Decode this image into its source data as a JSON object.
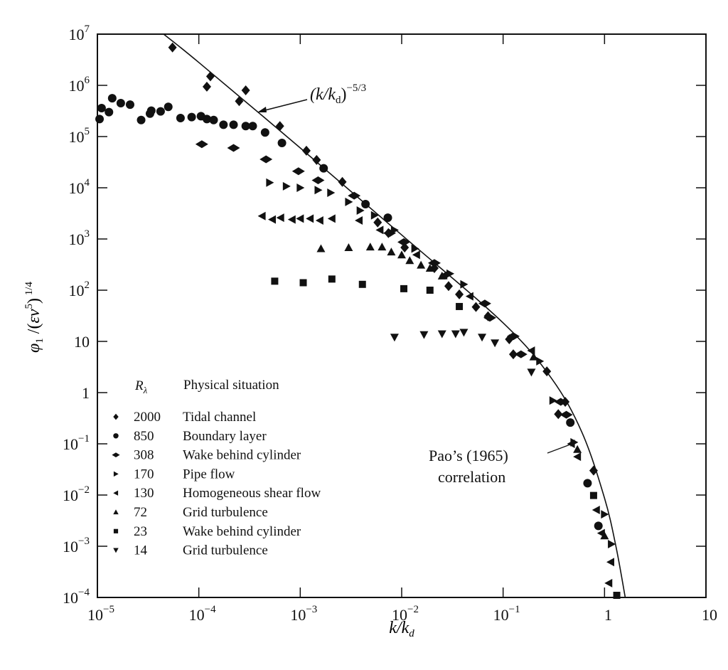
{
  "chart_data": {
    "type": "scatter",
    "title": "",
    "xlabel": "k/k_d",
    "ylabel": "φ1 /(εν^5)^1/4",
    "x_scale": "log",
    "y_scale": "log",
    "xlim": [
      1e-05,
      10
    ],
    "ylim": [
      0.0001,
      10000000.0
    ],
    "grid": false,
    "x_ticks": [
      "10^-5",
      "10^-4",
      "10^-3",
      "10^-2",
      "10^-1",
      "1",
      "10"
    ],
    "y_ticks": [
      "10^7",
      "10^6",
      "10^5",
      "10^4",
      "10^3",
      "10^2",
      "10",
      "1",
      "10^-1",
      "10^-2",
      "10^-3",
      "10^-4"
    ],
    "legend": {
      "placement": "bottom-left",
      "header_symbol": "R",
      "header_subscript": "λ",
      "header_text": "Physical situation"
    },
    "curve": {
      "points": [
        [
          4.5e-05,
          10000000.0
        ],
        [
          0.0001,
          2800000.0
        ],
        [
          0.001,
          60000.0
        ],
        [
          0.01,
          1200.0
        ],
        [
          0.1,
          23
        ],
        [
          0.3,
          1.9
        ],
        [
          0.6,
          0.166
        ],
        [
          1,
          0.0087
        ],
        [
          1.3,
          0.00096
        ],
        [
          1.6,
          0.0001
        ]
      ]
    },
    "annotations": {
      "power_law": {
        "base": "(k/k",
        "sub": "d",
        "close": ")",
        "exp": "−5/3"
      },
      "pao_line1": "Pao’s (1965)",
      "pao_line2": "correlation"
    },
    "series": [
      {
        "r": "2000",
        "name": "Tidal channel",
        "marker": "diamond",
        "points": [
          [
            5.5e-05,
            5500000.0
          ],
          [
            0.00013,
            1500000.0
          ],
          [
            0.00012,
            940000.0
          ],
          [
            0.00029,
            800000.0
          ],
          [
            0.00025,
            490000.0
          ],
          [
            0.00063,
            160000.0
          ],
          [
            0.00115,
            53000.0
          ],
          [
            0.00145,
            35000.0
          ],
          [
            0.0026,
            13000.0
          ],
          [
            0.0058,
            2100.0
          ],
          [
            0.0074,
            1300.0
          ],
          [
            0.0107,
            680
          ],
          [
            0.021,
            270
          ],
          [
            0.029,
            120
          ],
          [
            0.037,
            83
          ],
          [
            0.054,
            47
          ],
          [
            0.071,
            31
          ],
          [
            0.115,
            11
          ],
          [
            0.126,
            5.6
          ],
          [
            0.27,
            2.6
          ],
          [
            0.41,
            0.66
          ],
          [
            0.35,
            0.38
          ],
          [
            0.78,
            0.03
          ]
        ]
      },
      {
        "r": "850",
        "name": "Boundary layer",
        "marker": "circle",
        "points": [
          [
            1.05e-05,
            220000.0
          ],
          [
            1.1e-05,
            360000.0
          ],
          [
            1.3e-05,
            300000.0
          ],
          [
            1.4e-05,
            560000.0
          ],
          [
            1.7e-05,
            450000.0
          ],
          [
            2.1e-05,
            420000.0
          ],
          [
            2.7e-05,
            210000.0
          ],
          [
            3.3e-05,
            280000.0
          ],
          [
            3.4e-05,
            320000.0
          ],
          [
            4.2e-05,
            310000.0
          ],
          [
            5e-05,
            380000.0
          ],
          [
            6.6e-05,
            230000.0
          ],
          [
            8.5e-05,
            240000.0
          ],
          [
            0.000105,
            250000.0
          ],
          [
            0.00012,
            220000.0
          ],
          [
            0.00014,
            210000.0
          ],
          [
            0.000175,
            170000.0
          ],
          [
            0.00022,
            170000.0
          ],
          [
            0.00029,
            160000.0
          ],
          [
            0.00034,
            160000.0
          ],
          [
            0.00045,
            120000.0
          ],
          [
            0.00066,
            75000.0
          ],
          [
            0.0017,
            24000.0
          ],
          [
            0.0044,
            4800.0
          ],
          [
            0.0073,
            2600.0
          ],
          [
            0.46,
            0.26
          ],
          [
            0.68,
            0.017
          ],
          [
            0.87,
            0.0025
          ]
        ]
      },
      {
        "r": "308",
        "name": "Wake behind cylinder",
        "marker": "wide-diamond",
        "points": [
          [
            0.000107,
            71000.0
          ],
          [
            0.00022,
            60000.0
          ],
          [
            0.00046,
            36000.0
          ],
          [
            0.00096,
            21000.0
          ],
          [
            0.0015,
            14000.0
          ],
          [
            0.0034,
            7000.0
          ],
          [
            0.0076,
            1300.0
          ],
          [
            0.0105,
            870
          ],
          [
            0.021,
            340
          ],
          [
            0.066,
            55
          ],
          [
            0.074,
            29
          ],
          [
            0.126,
            12.6
          ],
          [
            0.15,
            5.6
          ],
          [
            0.37,
            0.66
          ],
          [
            0.42,
            0.37
          ]
        ]
      },
      {
        "r": "170",
        "name": "Pipe flow",
        "marker": "triangle-right",
        "points": [
          [
            0.0005,
            12600.0
          ],
          [
            0.00073,
            10700.0
          ],
          [
            0.001,
            10000.0
          ],
          [
            0.0015,
            9000.0
          ],
          [
            0.002,
            8000.0
          ],
          [
            0.003,
            5300.0
          ],
          [
            0.0039,
            3600.0
          ],
          [
            0.0054,
            2900.0
          ],
          [
            0.0085,
            1500.0
          ],
          [
            0.0135,
            650
          ],
          [
            0.03,
            210
          ],
          [
            0.041,
            130
          ],
          [
            0.23,
            4.1
          ],
          [
            0.31,
            0.7
          ],
          [
            0.5,
            0.107
          ],
          [
            1.0,
            0.0042
          ],
          [
            1.17,
            0.0011
          ]
        ]
      },
      {
        "r": "130",
        "name": "Homogeneous shear flow",
        "marker": "triangle-left",
        "points": [
          [
            0.00042,
            2800.0
          ],
          [
            0.00053,
            2400.0
          ],
          [
            0.00064,
            2600.0
          ],
          [
            0.00083,
            2400.0
          ],
          [
            0.001,
            2500.0
          ],
          [
            0.00125,
            2500.0
          ],
          [
            0.00156,
            2300.0
          ],
          [
            0.00205,
            2500.0
          ],
          [
            0.0038,
            2300.0
          ],
          [
            0.0061,
            1500.0
          ],
          [
            0.014,
            490
          ],
          [
            0.026,
            195
          ],
          [
            0.047,
            76
          ],
          [
            0.19,
            6.6
          ],
          [
            0.47,
            0.1
          ],
          [
            0.54,
            0.056
          ],
          [
            0.83,
            0.0051
          ],
          [
            0.93,
            0.0018
          ],
          [
            1.15,
            0.00049
          ],
          [
            1.1,
            0.00019
          ]
        ]
      },
      {
        "r": "72",
        "name": "Grid turbulence",
        "marker": "triangle-up",
        "points": [
          [
            0.0016,
            650
          ],
          [
            0.003,
            680
          ],
          [
            0.0049,
            700
          ],
          [
            0.0064,
            700
          ],
          [
            0.0079,
            560
          ],
          [
            0.01,
            490
          ],
          [
            0.012,
            380
          ],
          [
            0.0155,
            310
          ],
          [
            0.019,
            270
          ],
          [
            0.025,
            190
          ],
          [
            0.2,
            5
          ],
          [
            0.54,
            0.078
          ],
          [
            1.0,
            0.0016
          ]
        ]
      },
      {
        "r": "23",
        "name": "Wake behind cylinder",
        "marker": "square",
        "points": [
          [
            0.00056,
            150
          ],
          [
            0.00107,
            140
          ],
          [
            0.00205,
            165
          ],
          [
            0.0041,
            130
          ],
          [
            0.0105,
            107
          ],
          [
            0.019,
            100
          ],
          [
            0.037,
            48
          ],
          [
            0.78,
            0.0098
          ],
          [
            1.32,
            0.00011
          ]
        ]
      },
      {
        "r": "14",
        "name": "Grid turbulence",
        "marker": "triangle-down",
        "points": [
          [
            0.0085,
            12
          ],
          [
            0.0166,
            13.5
          ],
          [
            0.025,
            14
          ],
          [
            0.034,
            14
          ],
          [
            0.041,
            15
          ],
          [
            0.062,
            12
          ],
          [
            0.083,
            9.3
          ],
          [
            0.19,
            2.5
          ]
        ]
      }
    ],
    "colors": {
      "ink": "#111111",
      "background": "#ffffff"
    }
  }
}
